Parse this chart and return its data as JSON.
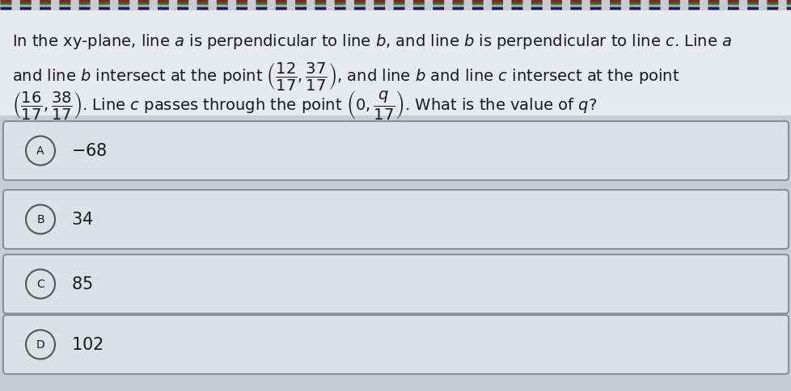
{
  "bg_color": "#c8cdd4",
  "box_color": "#dde0e5",
  "box_edge_color": "#8a9099",
  "text_color": "#1a1a1a",
  "question_line1": "In the xy-plane, line $\\mathit{a}$ is perpendicular to line $\\mathit{b}$, and line $\\mathit{b}$ is perpendicular to line $\\mathit{c}$. Line $\\mathit{a}$",
  "question_line2": "and line $\\mathit{b}$ intersect at the point $\\left(\\dfrac{12}{17}, \\dfrac{37}{17}\\right)$, and line $\\mathit{b}$ and line $\\mathit{c}$ intersect at the point",
  "question_line3": "$\\left(\\dfrac{16}{17}, \\dfrac{38}{17}\\right)$. Line $\\mathit{c}$ passes through the point $\\left(0, \\dfrac{q}{17}\\right)$. What is the value of $q$?",
  "choices": [
    {
      "label": "A",
      "value": "$-68$"
    },
    {
      "label": "B",
      "value": "$34$"
    },
    {
      "label": "C",
      "value": "$85$"
    },
    {
      "label": "D",
      "value": "$102$"
    }
  ],
  "top_stripes_colors": [
    "#8b4513",
    "#228b22",
    "#cccccc",
    "#1a1a6e"
  ],
  "q_fontsize": 14,
  "choice_fontsize": 15,
  "letter_fontsize": 10
}
